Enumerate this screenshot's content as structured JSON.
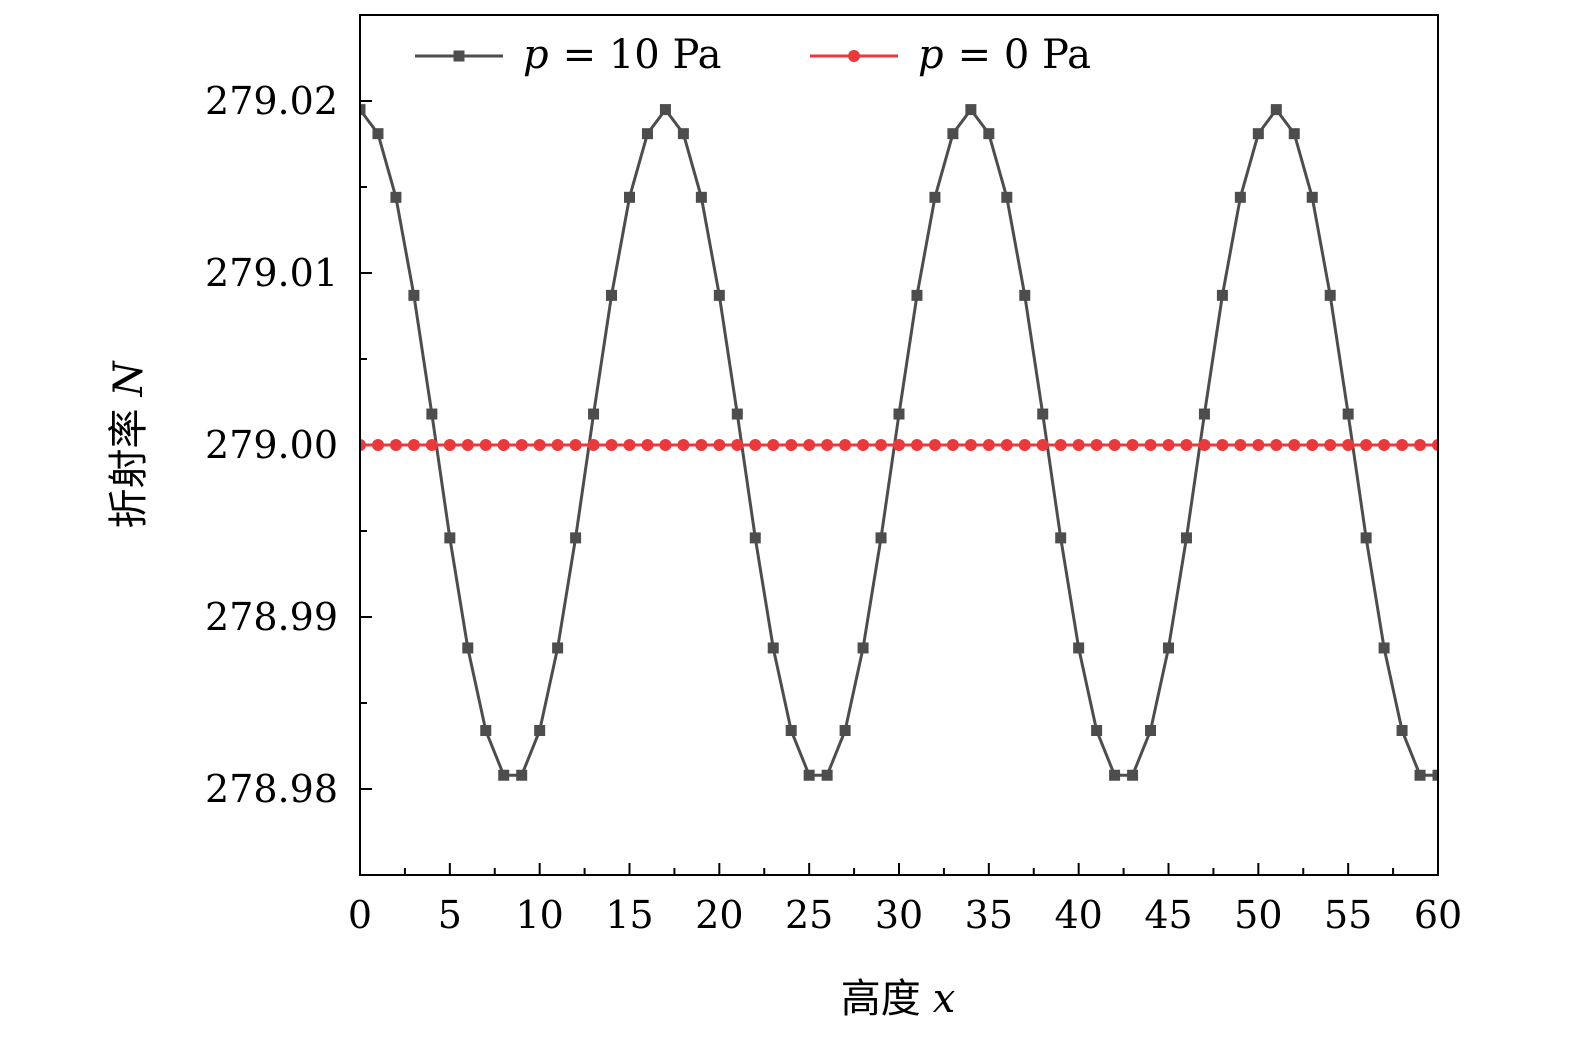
{
  "chart_data": {
    "type": "line",
    "title": "",
    "xlabel_text": "高度",
    "xlabel_var": "x",
    "ylabel_text": "折射率",
    "ylabel_var": "N",
    "xlim": [
      0,
      60
    ],
    "ylim": [
      278.975,
      279.025
    ],
    "xticks": [
      0,
      5,
      10,
      15,
      20,
      25,
      30,
      35,
      40,
      45,
      50,
      55,
      60
    ],
    "yticks": [
      278.98,
      278.99,
      279.0,
      279.01,
      279.02
    ],
    "ytick_labels": [
      "278.98",
      "278.99",
      "279.00",
      "279.01",
      "279.02"
    ],
    "grid": false,
    "legend_position": "top",
    "series": [
      {
        "name": "p = 10 Pa",
        "legend_var": "p",
        "legend_value": "= 10 Pa",
        "color": "#4d4d4d",
        "marker": "square",
        "x": [
          0,
          1,
          2,
          3,
          4,
          5,
          6,
          7,
          8,
          9,
          10,
          11,
          12,
          13,
          14,
          15,
          16,
          17,
          18,
          19,
          20,
          21,
          22,
          23,
          24,
          25,
          26,
          27,
          28,
          29,
          30,
          31,
          32,
          33,
          34,
          35,
          36,
          37,
          38,
          39,
          40,
          41,
          42,
          43,
          44,
          45,
          46,
          47,
          48,
          49,
          50,
          51,
          52,
          53,
          54,
          55,
          56,
          57,
          58,
          59,
          60
        ],
        "y": [
          279.0195,
          279.0181,
          279.0144,
          279.0087,
          279.0018,
          278.9946,
          278.9882,
          278.9834,
          278.9808,
          278.9808,
          278.9834,
          278.9882,
          278.9946,
          279.0018,
          279.0087,
          279.0144,
          279.0181,
          279.0195,
          279.0181,
          279.0144,
          279.0087,
          279.0018,
          278.9946,
          278.9882,
          278.9834,
          278.9808,
          278.9808,
          278.9834,
          278.9882,
          278.9946,
          279.0018,
          279.0087,
          279.0144,
          279.0181,
          279.0195,
          279.0181,
          279.0144,
          279.0087,
          279.0018,
          278.9946,
          278.9882,
          278.9834,
          278.9808,
          278.9808,
          278.9834,
          278.9882,
          278.9946,
          279.0018,
          279.0087,
          279.0144,
          279.0181,
          279.0195,
          279.0181,
          279.0144,
          279.0087,
          279.0018,
          278.9946,
          278.9882,
          278.9834,
          278.9808,
          278.9808
        ]
      },
      {
        "name": "p = 0 Pa",
        "legend_var": "p",
        "legend_value": "= 0 Pa",
        "color": "#e8393d",
        "marker": "circle",
        "x": [
          0,
          1,
          2,
          3,
          4,
          5,
          6,
          7,
          8,
          9,
          10,
          11,
          12,
          13,
          14,
          15,
          16,
          17,
          18,
          19,
          20,
          21,
          22,
          23,
          24,
          25,
          26,
          27,
          28,
          29,
          30,
          31,
          32,
          33,
          34,
          35,
          36,
          37,
          38,
          39,
          40,
          41,
          42,
          43,
          44,
          45,
          46,
          47,
          48,
          49,
          50,
          51,
          52,
          53,
          54,
          55,
          56,
          57,
          58,
          59,
          60
        ],
        "y": [
          279.0,
          279.0,
          279.0,
          279.0,
          279.0,
          279.0,
          279.0,
          279.0,
          279.0,
          279.0,
          279.0,
          279.0,
          279.0,
          279.0,
          279.0,
          279.0,
          279.0,
          279.0,
          279.0,
          279.0,
          279.0,
          279.0,
          279.0,
          279.0,
          279.0,
          279.0,
          279.0,
          279.0,
          279.0,
          279.0,
          279.0,
          279.0,
          279.0,
          279.0,
          279.0,
          279.0,
          279.0,
          279.0,
          279.0,
          279.0,
          279.0,
          279.0,
          279.0,
          279.0,
          279.0,
          279.0,
          279.0,
          279.0,
          279.0,
          279.0,
          279.0,
          279.0,
          279.0,
          279.0,
          279.0,
          279.0,
          279.0,
          279.0,
          279.0,
          279.0,
          279.0
        ]
      }
    ]
  }
}
